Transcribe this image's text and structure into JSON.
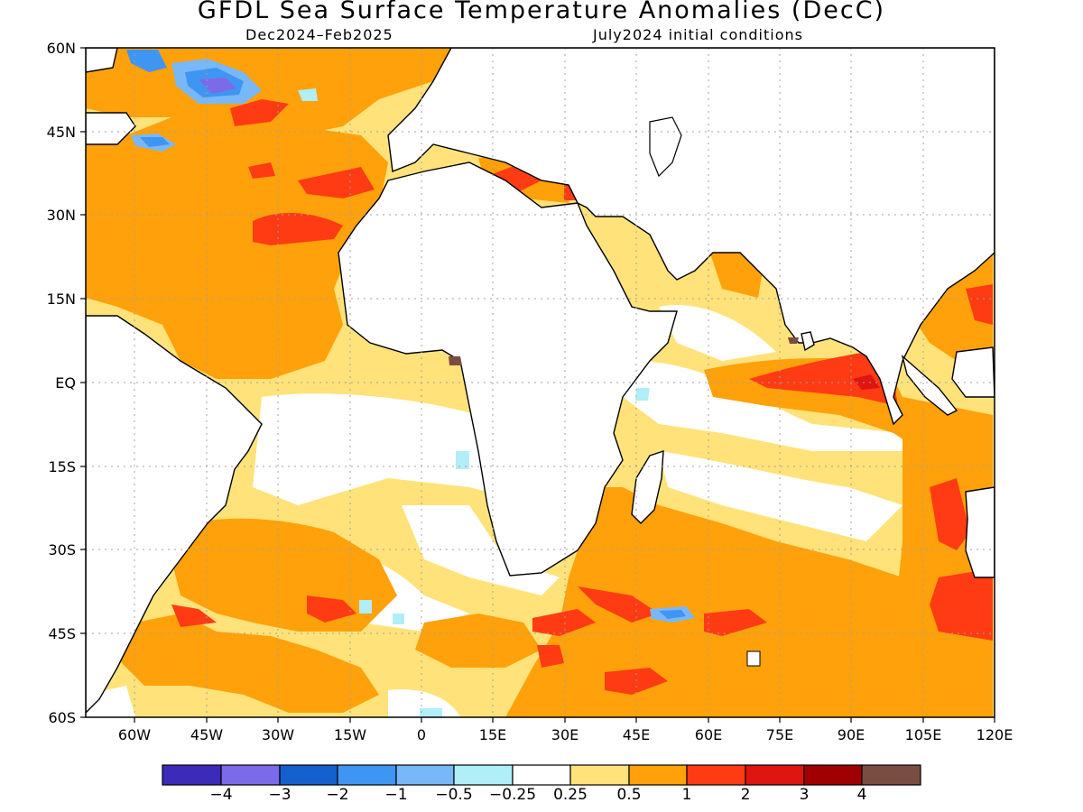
{
  "title": "GFDL Sea Surface Temperature Anomalies (DecC)",
  "subtitle_left": "Dec2024–Feb2025",
  "subtitle_right": "July2024 initial conditions",
  "lat_labels": [
    "60N",
    "45N",
    "30N",
    "15N",
    "EQ",
    "15S",
    "30S",
    "45S",
    "60S"
  ],
  "lon_labels": [
    "60W",
    "45W",
    "30W",
    "15W",
    "0",
    "15E",
    "30E",
    "45E",
    "60E",
    "75E",
    "90E",
    "105E",
    "120E"
  ],
  "colorbar": {
    "colors": [
      "#3b2bb8",
      "#7b6be8",
      "#1560cf",
      "#3f95f2",
      "#78b8f8",
      "#b0eef8",
      "#ffffff",
      "#ffe27a",
      "#ffa10a",
      "#ff3b14",
      "#de1510",
      "#a00000",
      "#7a4d42"
    ],
    "labels": [
      "−4",
      "−3",
      "−2",
      "−1",
      "−0.5",
      "−0.25",
      "0.25",
      "0.5",
      "1",
      "2",
      "3",
      "4"
    ]
  }
}
